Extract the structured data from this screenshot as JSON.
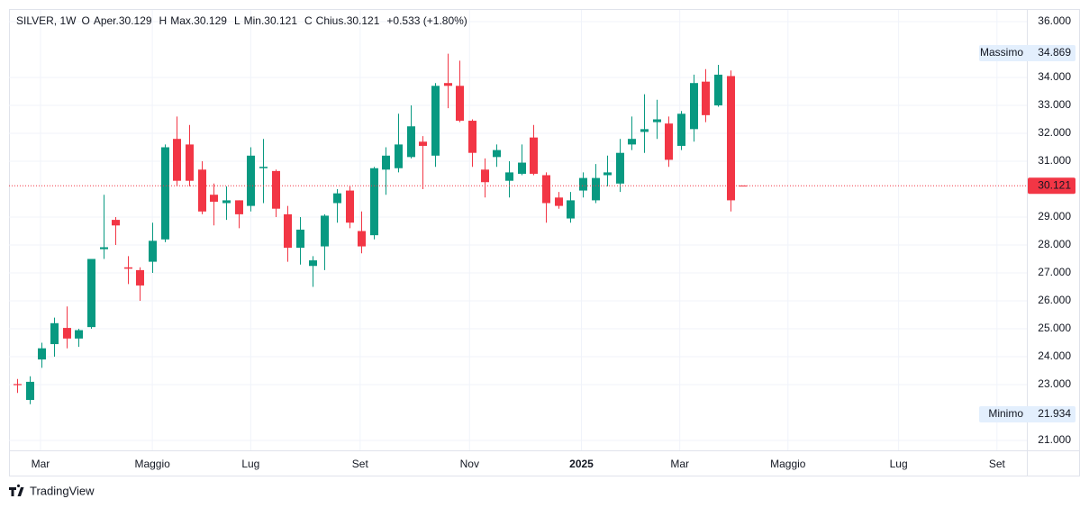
{
  "chart_data": {
    "type": "candlestick",
    "header": {
      "symbol": "SILVER, 1W",
      "o": "O",
      "open_label": "Aper.",
      "open": "30.129",
      "h": "H",
      "high_label": "Max.",
      "high": "30.129",
      "l": "L",
      "low_label": "Min.",
      "low": "30.121",
      "c": "C",
      "close_label": "Chius.",
      "close": "30.121",
      "change": "+0.533 (+1.80%)"
    },
    "up_color": "#089981",
    "down_color": "#f23645",
    "open": [
      23.02,
      22.45,
      23.9,
      24.45,
      25.03,
      24.65,
      25.06,
      27.85,
      28.9,
      27.2,
      27.1,
      27.4,
      28.2,
      31.8,
      31.6,
      30.7,
      29.8,
      29.5,
      29.6,
      29.4,
      30.75,
      30.65,
      29.1,
      27.9,
      27.25,
      27.95,
      29.5,
      29.95,
      28.5,
      28.35,
      30.7,
      30.75,
      31.15,
      31.7,
      31.2,
      33.8,
      33.7,
      32.45,
      30.7,
      31.15,
      30.3,
      30.55,
      31.85,
      30.5,
      29.7,
      28.95,
      29.95,
      29.6,
      30.5,
      30.2,
      31.6,
      32.05,
      32.4,
      32.35,
      31.55,
      32.15,
      33.85,
      33.0,
      34.05,
      30.129
    ],
    "high": [
      23.2,
      23.3,
      24.5,
      25.4,
      25.8,
      25.0,
      27.5,
      29.8,
      29.0,
      27.6,
      27.2,
      28.8,
      31.6,
      32.6,
      32.3,
      31.0,
      30.2,
      30.1,
      29.6,
      31.5,
      31.8,
      30.7,
      29.4,
      29.0,
      27.6,
      29.1,
      30.0,
      30.1,
      29.2,
      30.8,
      31.5,
      32.7,
      33.0,
      31.9,
      33.8,
      34.85,
      34.6,
      32.5,
      31.1,
      31.6,
      31.0,
      31.6,
      32.3,
      30.6,
      29.9,
      29.9,
      30.6,
      30.9,
      31.2,
      31.8,
      32.6,
      33.4,
      33.2,
      32.6,
      32.8,
      34.1,
      34.3,
      34.45,
      34.25,
      30.129
    ],
    "low": [
      22.7,
      22.3,
      23.6,
      24.0,
      24.3,
      24.35,
      25.0,
      27.5,
      28.0,
      26.6,
      26.0,
      27.0,
      28.1,
      30.1,
      30.1,
      29.1,
      28.7,
      28.9,
      28.6,
      29.2,
      29.5,
      29.0,
      27.4,
      27.3,
      26.5,
      27.1,
      28.8,
      28.6,
      27.7,
      28.2,
      29.8,
      30.6,
      31.1,
      30.0,
      30.8,
      32.9,
      32.4,
      30.8,
      29.7,
      30.8,
      29.7,
      30.5,
      30.5,
      28.8,
      29.3,
      28.8,
      29.7,
      29.5,
      30.1,
      29.9,
      31.4,
      31.3,
      31.8,
      30.8,
      31.4,
      31.7,
      32.4,
      32.95,
      29.2,
      30.121
    ],
    "close": [
      22.98,
      23.1,
      24.3,
      25.2,
      24.65,
      24.95,
      27.5,
      27.92,
      28.7,
      27.15,
      26.55,
      28.15,
      31.5,
      30.3,
      30.3,
      29.2,
      29.55,
      29.6,
      29.1,
      31.2,
      30.8,
      29.3,
      27.9,
      28.55,
      27.45,
      29.05,
      29.85,
      28.8,
      27.95,
      30.75,
      31.2,
      31.6,
      32.25,
      31.55,
      33.7,
      33.7,
      32.45,
      31.3,
      30.25,
      31.4,
      30.6,
      30.95,
      30.55,
      29.5,
      29.4,
      29.6,
      30.4,
      30.4,
      30.6,
      31.3,
      31.8,
      32.15,
      32.5,
      31.05,
      32.7,
      33.8,
      32.65,
      34.1,
      29.6,
      30.121
    ],
    "xlim": [
      -0.66,
      82.13
    ],
    "xticks": [
      {
        "value": 1.9,
        "label": "Mar"
      },
      {
        "value": 11.0,
        "label": "Maggio"
      },
      {
        "value": 19.0,
        "label": "Lug"
      },
      {
        "value": 27.9,
        "label": "Set"
      },
      {
        "value": 36.8,
        "label": "Nov"
      },
      {
        "value": 45.9,
        "label": "2025"
      },
      {
        "value": 53.9,
        "label": "Mar"
      },
      {
        "value": 62.7,
        "label": "Maggio"
      },
      {
        "value": 71.7,
        "label": "Lug"
      },
      {
        "value": 79.7,
        "label": "Set"
      }
    ],
    "ylim": [
      21.0,
      36.0
    ],
    "yticks": [
      {
        "value": 21,
        "label": "21.000"
      },
      {
        "value": 23,
        "label": "23.000"
      },
      {
        "value": 24,
        "label": "24.000"
      },
      {
        "value": 25,
        "label": "25.000"
      },
      {
        "value": 26,
        "label": "26.000"
      },
      {
        "value": 27,
        "label": "27.000"
      },
      {
        "value": 28,
        "label": "28.000"
      },
      {
        "value": 29,
        "label": "29.000"
      },
      {
        "value": 31,
        "label": "31.000"
      },
      {
        "value": 32,
        "label": "32.000"
      },
      {
        "value": 33,
        "label": "33.000"
      },
      {
        "value": 34,
        "label": "34.000"
      },
      {
        "value": 36,
        "label": "36.000"
      }
    ],
    "grid": true,
    "max_marker": {
      "label": "Massimo",
      "value": 34.869,
      "value_label": "34.869"
    },
    "min_marker": {
      "label": "Minimo",
      "value": 21.934,
      "value_label": "21.934"
    },
    "last_price": {
      "value": 30.121,
      "value_label": "30.121"
    },
    "brand": "TradingView"
  }
}
